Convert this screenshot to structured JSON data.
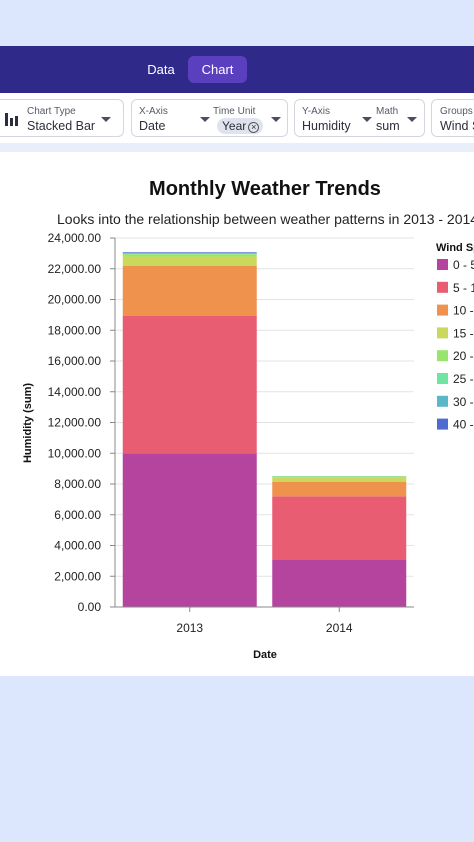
{
  "nav": {
    "tabs": [
      {
        "label": "Data",
        "active": false
      },
      {
        "label": "Chart",
        "active": true
      }
    ]
  },
  "controls": {
    "chart_type": {
      "label": "Chart Type",
      "value": "Stacked Bar",
      "icon": "bar-chart-icon"
    },
    "x_axis": {
      "label": "X-Axis",
      "value": "Date"
    },
    "time_unit": {
      "label": "Time Unit",
      "chip": "Year"
    },
    "y_axis": {
      "label": "Y-Axis",
      "value": "Humidity"
    },
    "math": {
      "label": "Math",
      "value": "sum"
    },
    "groups": {
      "label": "Groups",
      "value": "Wind S"
    }
  },
  "colors": {
    "topbar": "#2f2a8a",
    "active_tab": "#5a3fbf"
  },
  "chart_data": {
    "type": "bar",
    "stacked": true,
    "title": "Monthly Weather Trends",
    "subtitle": "Looks into the relationship between weather patterns in 2013 - 2014",
    "xlabel": "Date",
    "ylabel": "Humidity (sum)",
    "categories": [
      "2013",
      "2014"
    ],
    "ylim": [
      0,
      24000
    ],
    "yticks": [
      "0.00",
      "2,000.00",
      "4,000.00",
      "6,000.00",
      "8,000.00",
      "10,000.00",
      "12,000.00",
      "14,000.00",
      "16,000.00",
      "18,000.00",
      "20,000.00",
      "22,000.00",
      "24,000.00"
    ],
    "grid": true,
    "legend_title": "Wind Sp",
    "legend_position": "right",
    "series": [
      {
        "name": "0 - 5",
        "color": "#b5449f",
        "values": [
          10000,
          3100
        ]
      },
      {
        "name": "5 - 1",
        "color": "#e85d72",
        "values": [
          8950,
          4100
        ]
      },
      {
        "name": "10 -",
        "color": "#ee924e",
        "values": [
          3250,
          950
        ]
      },
      {
        "name": "15 -",
        "color": "#cad85b",
        "values": [
          600,
          300
        ]
      },
      {
        "name": "20 -",
        "color": "#98e56e",
        "values": [
          150,
          40
        ]
      },
      {
        "name": "25 -",
        "color": "#6ee5a2",
        "values": [
          40,
          10
        ]
      },
      {
        "name": "30 -",
        "color": "#5ab7c8",
        "values": [
          20,
          5
        ]
      },
      {
        "name": "40 -",
        "color": "#4f6bd2",
        "values": [
          60,
          5
        ]
      }
    ]
  }
}
